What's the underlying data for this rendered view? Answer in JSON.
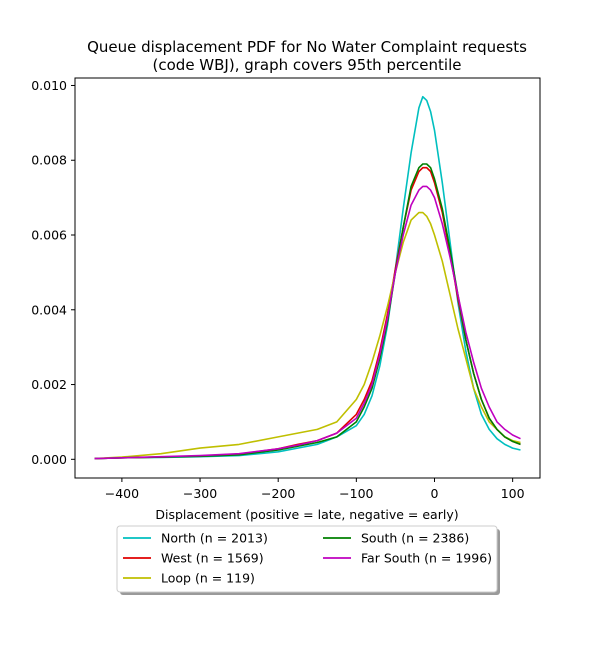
{
  "chart_data": {
    "type": "line",
    "title": "Queue displacement PDF for No Water Complaint  requests\n(code WBJ), graph covers 95th percentile",
    "xlabel": "Displacement (positive = late, negative = early)",
    "ylabel": "",
    "xlim": [
      -460,
      135
    ],
    "ylim": [
      -0.0005,
      0.0102
    ],
    "xticks": [
      -400,
      -300,
      -200,
      -100,
      0,
      100
    ],
    "xtick_labels": [
      "−400",
      "−300",
      "−200",
      "−100",
      "0",
      "100"
    ],
    "yticks": [
      0.0,
      0.002,
      0.004,
      0.006,
      0.008,
      0.01
    ],
    "ytick_labels": [
      "0.000",
      "0.002",
      "0.004",
      "0.006",
      "0.008",
      "0.010"
    ],
    "grid": false,
    "legend_placement": "below",
    "legend_columns": 2,
    "x": [
      -435,
      -400,
      -350,
      -300,
      -250,
      -200,
      -175,
      -150,
      -125,
      -100,
      -90,
      -80,
      -70,
      -60,
      -50,
      -40,
      -30,
      -20,
      -15,
      -10,
      -5,
      0,
      10,
      20,
      30,
      40,
      50,
      60,
      70,
      80,
      90,
      100,
      110
    ],
    "series": [
      {
        "name": "North (n = 2013)",
        "color": "#00bfbf",
        "values": [
          2e-05,
          4e-05,
          5e-05,
          7e-05,
          0.0001,
          0.0002,
          0.0003,
          0.0004,
          0.0006,
          0.0009,
          0.0012,
          0.0017,
          0.0025,
          0.0036,
          0.0051,
          0.0067,
          0.0082,
          0.0094,
          0.0097,
          0.0096,
          0.0093,
          0.0088,
          0.0074,
          0.0058,
          0.0042,
          0.0029,
          0.0019,
          0.0012,
          0.0008,
          0.00055,
          0.0004,
          0.0003,
          0.00025
        ]
      },
      {
        "name": "West (n = 1569)",
        "color": "#e00000",
        "values": [
          2e-05,
          4e-05,
          6e-05,
          9e-05,
          0.00014,
          0.00028,
          0.0004,
          0.0005,
          0.0007,
          0.0012,
          0.0016,
          0.0021,
          0.0029,
          0.0039,
          0.0051,
          0.0062,
          0.0072,
          0.0077,
          0.0078,
          0.0078,
          0.0077,
          0.0074,
          0.0066,
          0.0055,
          0.0043,
          0.0032,
          0.0023,
          0.0016,
          0.0011,
          0.0008,
          0.0006,
          0.00048,
          0.0004
        ]
      },
      {
        "name": "Loop (n = 119)",
        "color": "#bfbf00",
        "values": [
          2e-05,
          6e-05,
          0.00015,
          0.0003,
          0.0004,
          0.0006,
          0.0007,
          0.0008,
          0.001,
          0.0016,
          0.002,
          0.0026,
          0.0033,
          0.0041,
          0.005,
          0.0058,
          0.0064,
          0.0066,
          0.0066,
          0.0065,
          0.0063,
          0.006,
          0.0053,
          0.0044,
          0.0035,
          0.0027,
          0.0019,
          0.0014,
          0.001,
          0.0008,
          0.0006,
          0.0005,
          0.00045
        ]
      },
      {
        "name": "South (n = 2386)",
        "color": "#008000",
        "values": [
          2e-05,
          4e-05,
          6e-05,
          8e-05,
          0.00012,
          0.00025,
          0.00035,
          0.00045,
          0.0006,
          0.001,
          0.0014,
          0.0019,
          0.0027,
          0.0037,
          0.005,
          0.0062,
          0.0073,
          0.0078,
          0.0079,
          0.0079,
          0.0078,
          0.0075,
          0.0067,
          0.0056,
          0.0044,
          0.0032,
          0.0023,
          0.0016,
          0.0011,
          0.0008,
          0.0006,
          0.00048,
          0.0004
        ]
      },
      {
        "name": "Far South (n = 1996)",
        "color": "#bf00bf",
        "values": [
          2e-05,
          4e-05,
          7e-05,
          0.0001,
          0.00015,
          0.00028,
          0.00038,
          0.0005,
          0.0007,
          0.0011,
          0.0015,
          0.002,
          0.0028,
          0.0038,
          0.005,
          0.006,
          0.0068,
          0.0072,
          0.0073,
          0.0073,
          0.0072,
          0.007,
          0.0063,
          0.0054,
          0.0044,
          0.0034,
          0.0026,
          0.0019,
          0.0014,
          0.001,
          0.0008,
          0.00065,
          0.00055
        ]
      }
    ]
  }
}
